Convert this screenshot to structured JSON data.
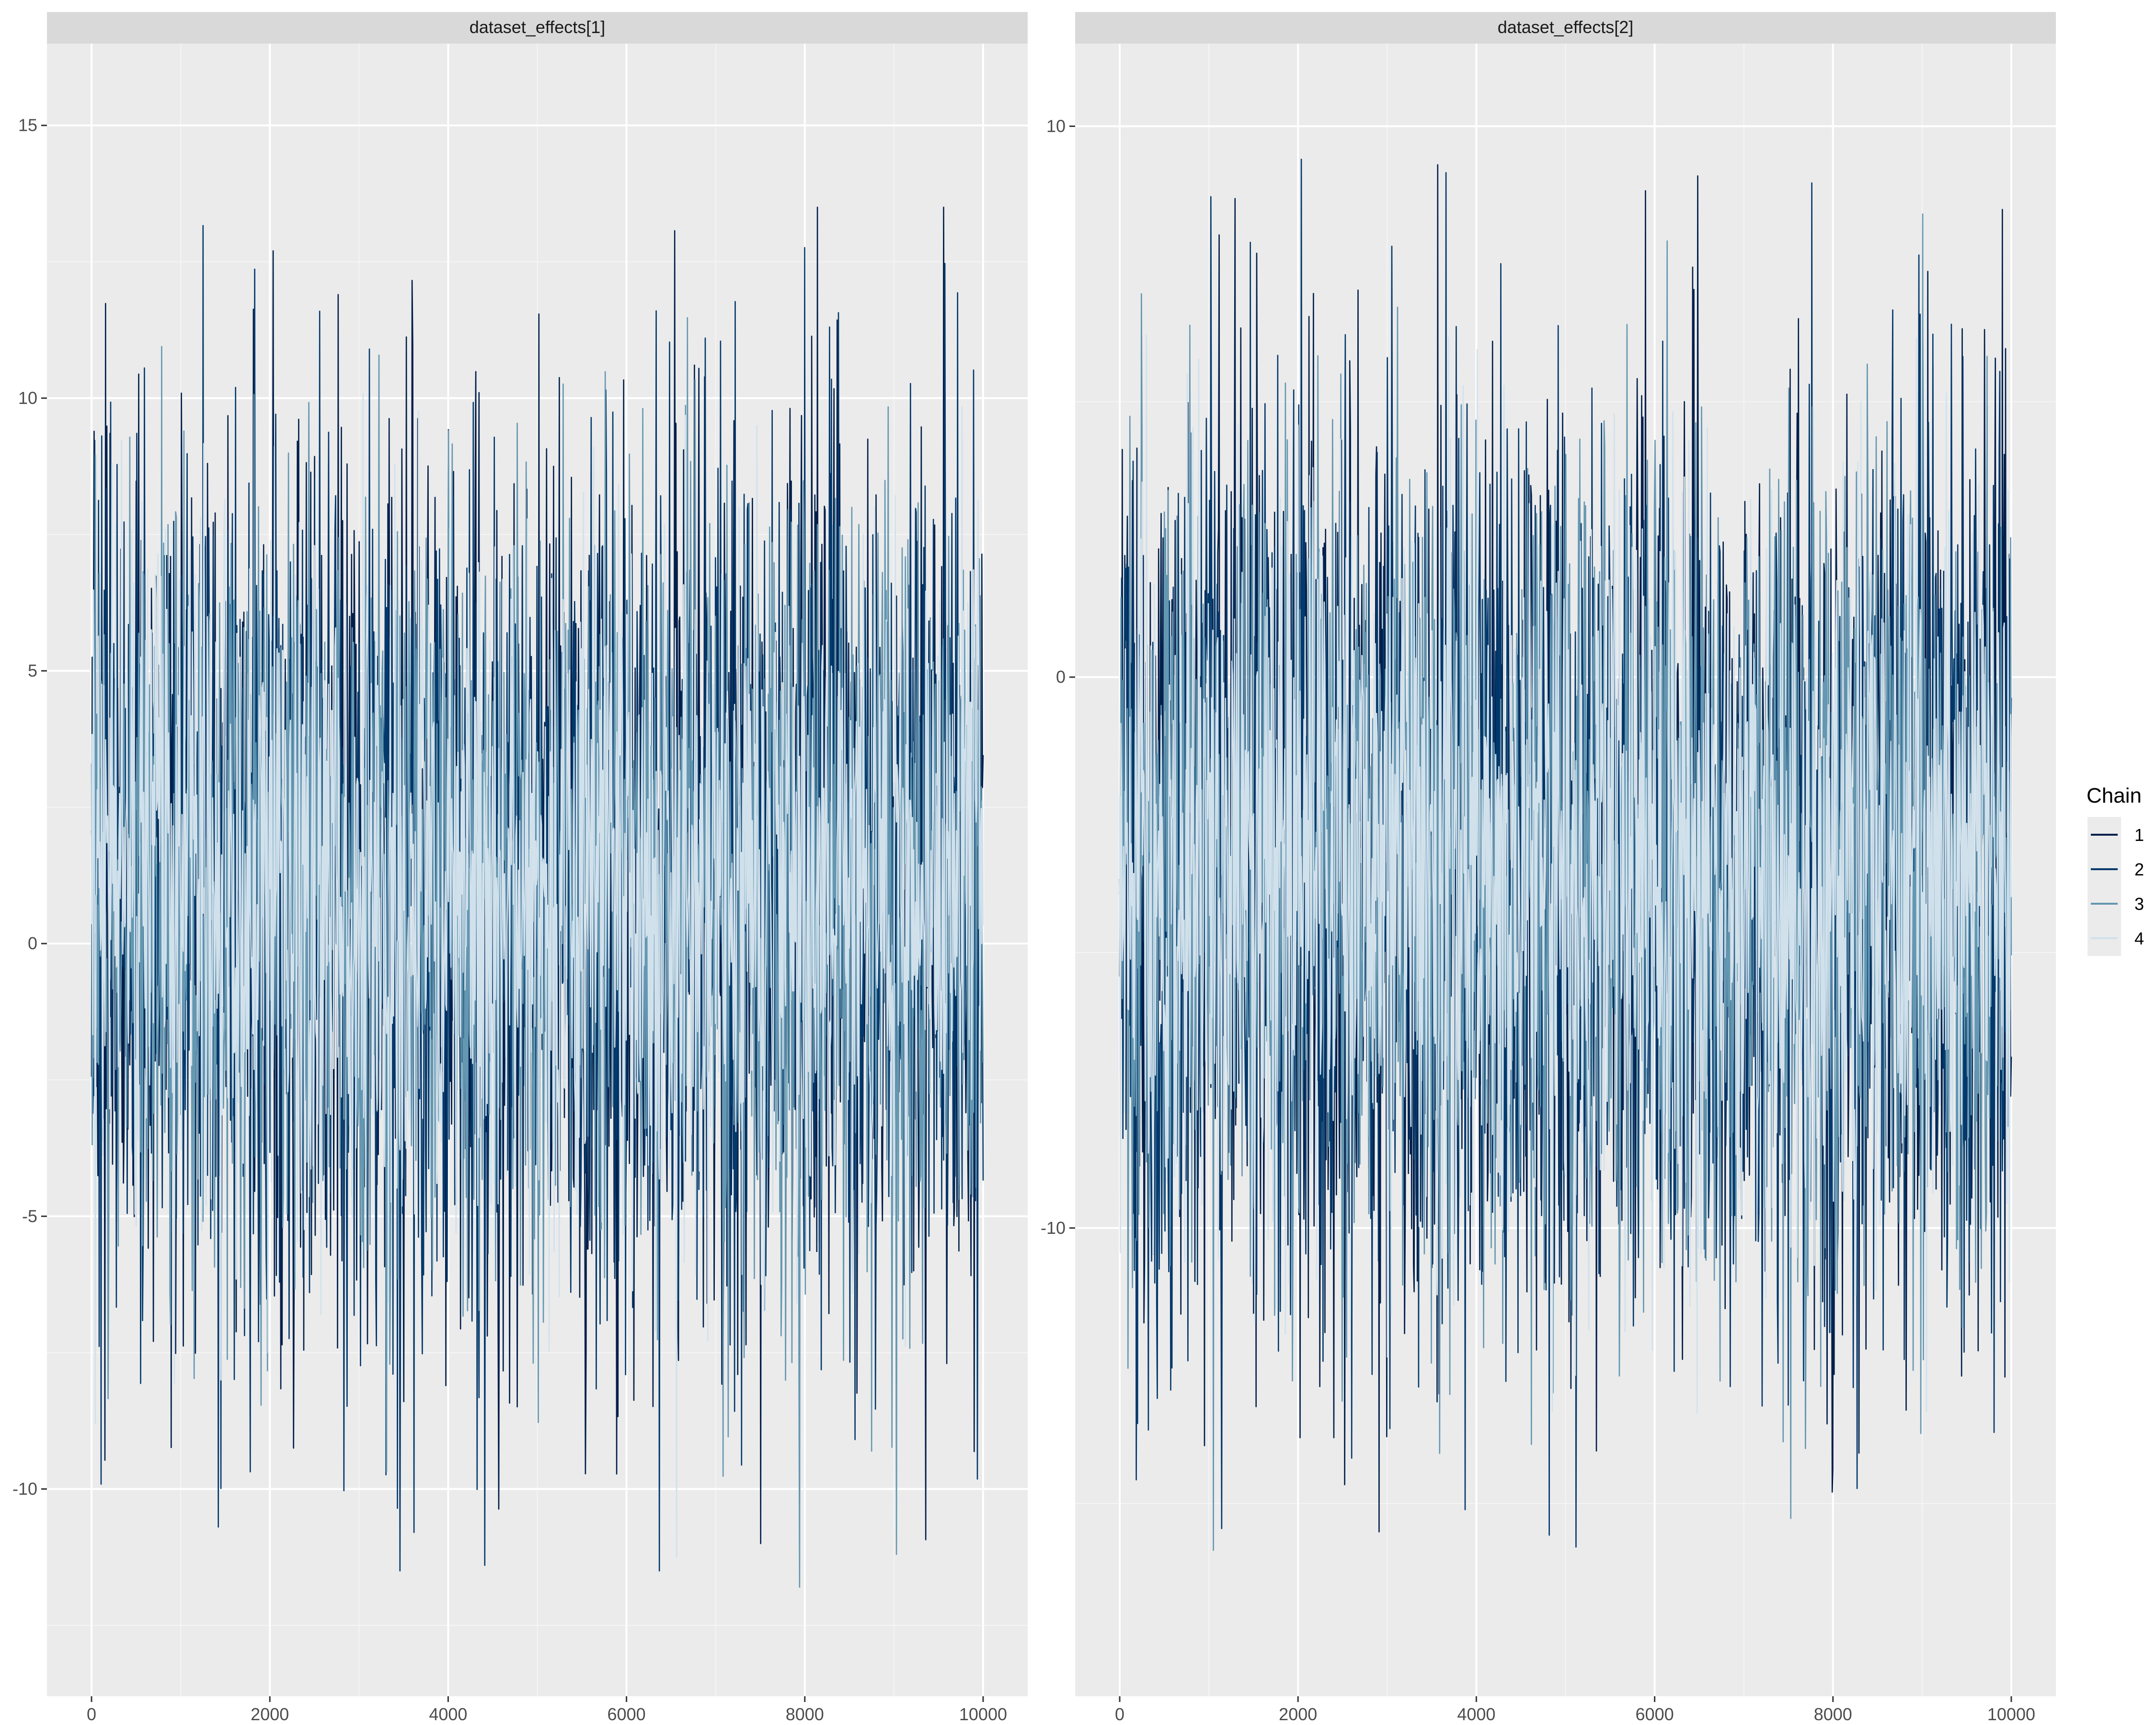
{
  "chart_data": [
    {
      "type": "line",
      "title": "dataset_effects[1]",
      "xlabel": "",
      "ylabel": "",
      "xlim": [
        -500,
        10500
      ],
      "ylim": [
        -13.8,
        16.5
      ],
      "xticks": [
        0,
        2000,
        4000,
        6000,
        8000,
        10000
      ],
      "yticks": [
        -10,
        -5,
        0,
        5,
        10,
        15
      ],
      "tick_labels_x": [
        "0",
        "2000",
        "4000",
        "6000",
        "8000",
        "10000"
      ],
      "tick_labels_y": [
        "-10",
        "-5",
        "0",
        "5",
        "10",
        "15"
      ],
      "grid": true,
      "series": [
        {
          "name": "1",
          "mean": 1.0,
          "sd": 4.0,
          "min": -11.0,
          "max": 13.5
        },
        {
          "name": "2",
          "mean": 1.0,
          "sd": 4.0,
          "min": -11.5,
          "max": 14.4
        },
        {
          "name": "3",
          "mean": 1.0,
          "sd": 3.6,
          "min": -11.8,
          "max": 14.8
        },
        {
          "name": "4",
          "mean": 1.0,
          "sd": 3.2,
          "min": -12.6,
          "max": 15.1
        }
      ]
    },
    {
      "type": "line",
      "title": "dataset_effects[2]",
      "xlabel": "",
      "ylabel": "",
      "xlim": [
        -500,
        10500
      ],
      "ylim": [
        -18.5,
        11.5
      ],
      "xticks": [
        0,
        2000,
        4000,
        6000,
        8000,
        10000
      ],
      "yticks": [
        -10,
        0,
        10
      ],
      "tick_labels_x": [
        "0",
        "2000",
        "4000",
        "6000",
        "8000",
        "10000"
      ],
      "tick_labels_y": [
        "-10",
        "0",
        "10"
      ],
      "grid": true,
      "series": [
        {
          "name": "1",
          "mean": -3.5,
          "sd": 4.2,
          "min": -16.5,
          "max": 9.3
        },
        {
          "name": "2",
          "mean": -3.5,
          "sd": 4.2,
          "min": -17.5,
          "max": 9.4
        },
        {
          "name": "3",
          "mean": -3.5,
          "sd": 3.8,
          "min": -16.0,
          "max": 9.3
        },
        {
          "name": "4",
          "mean": -3.5,
          "sd": 3.3,
          "min": -15.5,
          "max": 8.6
        }
      ]
    }
  ],
  "legend": {
    "title": "Chain",
    "placement": "right",
    "items": [
      {
        "label": "1",
        "color": "#011f4b"
      },
      {
        "label": "2",
        "color": "#03396c"
      },
      {
        "label": "3",
        "color": "#6497b1"
      },
      {
        "label": "4",
        "color": "#d1e1ec"
      }
    ]
  },
  "colors": {
    "panel_background": "#ebebeb",
    "strip_background": "#d9d9d9",
    "grid_major": "#ffffff",
    "grid_minor": "#f5f5f5"
  }
}
